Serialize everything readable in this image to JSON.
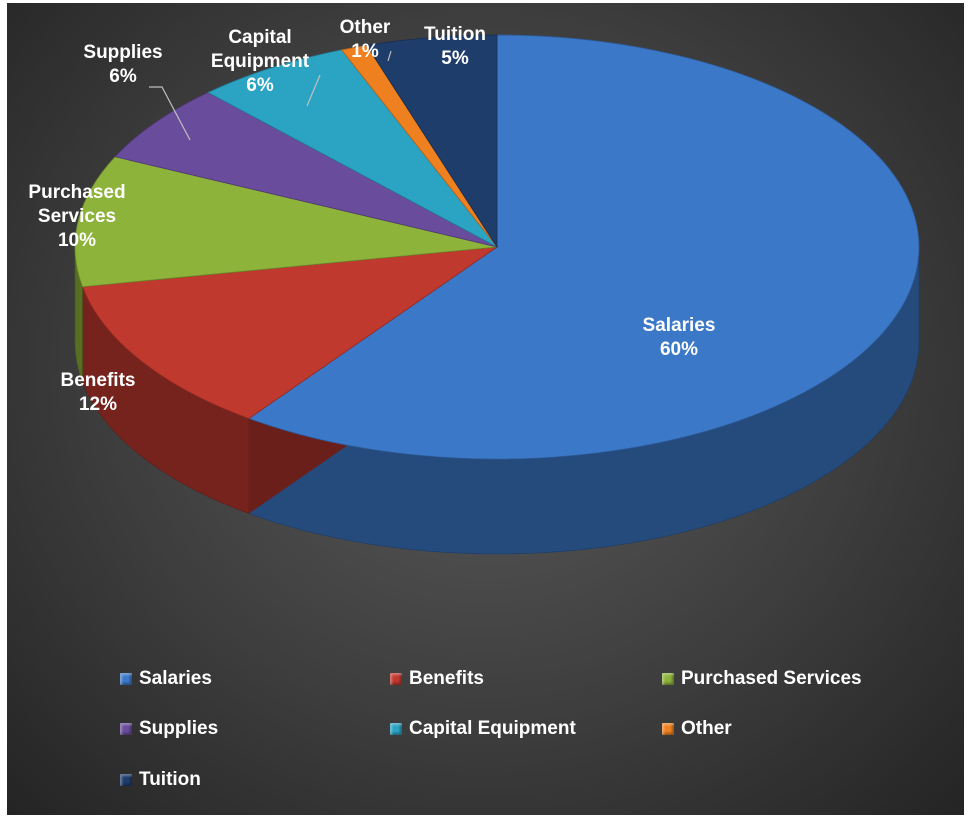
{
  "chart_data": {
    "type": "pie",
    "title": "",
    "three_d": true,
    "categories": [
      "Salaries",
      "Benefits",
      "Purchased Services",
      "Supplies",
      "Capital Equipment",
      "Other",
      "Tuition"
    ],
    "values": [
      60,
      12,
      10,
      6,
      6,
      1,
      5
    ],
    "value_labels": [
      "60%",
      "12%",
      "10%",
      "6%",
      "6%",
      "1%",
      "5%"
    ],
    "colors": [
      "#3c78c8",
      "#c0392f",
      "#8db33a",
      "#6a4c9c",
      "#2ba3c3",
      "#ee8020",
      "#1f3d6b"
    ],
    "data_labels": [
      {
        "name": "Salaries",
        "value": "60%"
      },
      {
        "name": "Benefits",
        "value": "12%"
      },
      {
        "name": "Purchased Services",
        "value": "10%"
      },
      {
        "name": "Supplies",
        "value": "6%"
      },
      {
        "name": "Capital Equipment",
        "value": "6%"
      },
      {
        "name": "Other",
        "value": "1%"
      },
      {
        "name": "Tuition",
        "value": "5%"
      }
    ],
    "legend_position": "bottom"
  }
}
